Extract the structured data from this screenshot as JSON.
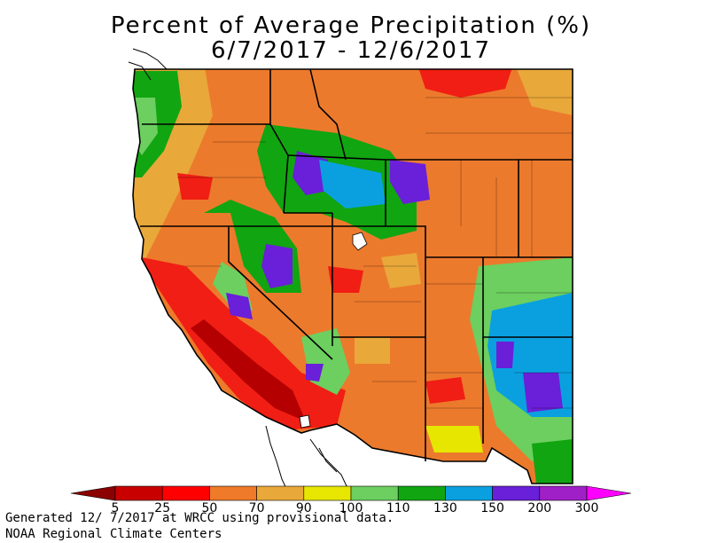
{
  "title": "Percent of Average Precipitation (%)",
  "date_range": "6/7/2017 - 12/6/2017",
  "legend": {
    "breaks": [
      "5",
      "25",
      "50",
      "70",
      "90",
      "100",
      "110",
      "130",
      "150",
      "200",
      "300"
    ],
    "colors": [
      "#8b0000",
      "#c80000",
      "#ff0000",
      "#ee7a2a",
      "#e9a83a",
      "#e6e600",
      "#6ccf5f",
      "#11a511",
      "#0aa0e0",
      "#6a1fd8",
      "#a020c8",
      "#ff00ff"
    ]
  },
  "map_colors": {
    "dark_red": "#b40000",
    "red": "#f01e14",
    "orange": "#ec7a2c",
    "light_orange": "#e9a83a",
    "yellow": "#e6e600",
    "light_green": "#6ccf5f",
    "green": "#11a511",
    "blue": "#0aa0e0",
    "purple": "#6a1fd8"
  },
  "footer": {
    "line1": "Generated 12/ 7/2017 at WRCC using provisional data.",
    "line2": "NOAA Regional Climate Centers"
  }
}
